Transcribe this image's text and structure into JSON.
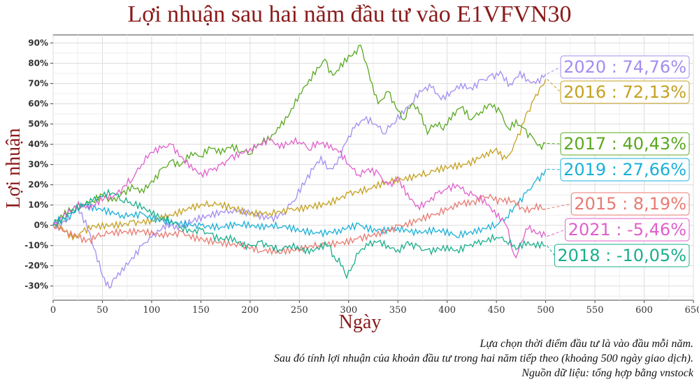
{
  "chart_data": {
    "type": "line",
    "title": "Lợi nhuận sau hai năm đầu tư vào E1VFVN30",
    "xlabel": "Ngày",
    "ylabel": "Lợi nhuận",
    "xlim": [
      0,
      650
    ],
    "ylim": [
      -37,
      94
    ],
    "x_ticks": [
      "0",
      "50",
      "100",
      "150",
      "200",
      "250",
      "300",
      "350",
      "400",
      "450",
      "500",
      "550",
      "600",
      "650"
    ],
    "y_ticks": [
      "90%",
      "80%",
      "70%",
      "60%",
      "50%",
      "40%",
      "30%",
      "20%",
      "10%",
      "0%",
      "-10%",
      "-20%",
      "-30%"
    ],
    "grid": true,
    "series": [
      {
        "name": "2020",
        "label": "2020 : 74,76%",
        "color": "#a48cf0",
        "points": [
          [
            0,
            0
          ],
          [
            15,
            3
          ],
          [
            25,
            8
          ],
          [
            35,
            -2
          ],
          [
            45,
            -18
          ],
          [
            52,
            -26
          ],
          [
            57,
            -31
          ],
          [
            62,
            -26
          ],
          [
            70,
            -21
          ],
          [
            80,
            -16
          ],
          [
            90,
            -10
          ],
          [
            100,
            -6
          ],
          [
            110,
            -2
          ],
          [
            125,
            0
          ],
          [
            140,
            1
          ],
          [
            160,
            4
          ],
          [
            180,
            7
          ],
          [
            200,
            6
          ],
          [
            220,
            4
          ],
          [
            235,
            6
          ],
          [
            245,
            12
          ],
          [
            255,
            20
          ],
          [
            262,
            28
          ],
          [
            272,
            34
          ],
          [
            280,
            28
          ],
          [
            288,
            30
          ],
          [
            296,
            40
          ],
          [
            306,
            48
          ],
          [
            316,
            52
          ],
          [
            326,
            50
          ],
          [
            336,
            45
          ],
          [
            346,
            50
          ],
          [
            356,
            55
          ],
          [
            364,
            60
          ],
          [
            374,
            66
          ],
          [
            384,
            68
          ],
          [
            394,
            62
          ],
          [
            404,
            66
          ],
          [
            414,
            70
          ],
          [
            424,
            68
          ],
          [
            434,
            72
          ],
          [
            444,
            74
          ],
          [
            454,
            76
          ],
          [
            464,
            70
          ],
          [
            474,
            76
          ],
          [
            482,
            72
          ],
          [
            490,
            70
          ],
          [
            500,
            74.76
          ]
        ]
      },
      {
        "name": "2016",
        "label": "2016 : 72,13%",
        "color": "#c4a020",
        "points": [
          [
            0,
            0
          ],
          [
            10,
            -2
          ],
          [
            20,
            -7
          ],
          [
            30,
            -3
          ],
          [
            40,
            0
          ],
          [
            60,
            1
          ],
          [
            80,
            2
          ],
          [
            100,
            3
          ],
          [
            120,
            5
          ],
          [
            140,
            8
          ],
          [
            160,
            10
          ],
          [
            180,
            8
          ],
          [
            200,
            5
          ],
          [
            220,
            6
          ],
          [
            240,
            8
          ],
          [
            260,
            10
          ],
          [
            280,
            12
          ],
          [
            300,
            16
          ],
          [
            320,
            18
          ],
          [
            340,
            21
          ],
          [
            360,
            22
          ],
          [
            380,
            25
          ],
          [
            400,
            28
          ],
          [
            420,
            30
          ],
          [
            440,
            36
          ],
          [
            450,
            38
          ],
          [
            460,
            33
          ],
          [
            470,
            42
          ],
          [
            480,
            55
          ],
          [
            488,
            62
          ],
          [
            494,
            68
          ],
          [
            500,
            72.13
          ]
        ]
      },
      {
        "name": "2017",
        "label": "2017 : 40,43%",
        "color": "#5aa820",
        "points": [
          [
            0,
            0
          ],
          [
            10,
            4
          ],
          [
            20,
            8
          ],
          [
            30,
            10
          ],
          [
            40,
            12
          ],
          [
            50,
            15
          ],
          [
            60,
            12
          ],
          [
            70,
            16
          ],
          [
            80,
            20
          ],
          [
            90,
            18
          ],
          [
            100,
            22
          ],
          [
            110,
            28
          ],
          [
            120,
            32
          ],
          [
            130,
            30
          ],
          [
            140,
            36
          ],
          [
            150,
            34
          ],
          [
            160,
            38
          ],
          [
            170,
            35
          ],
          [
            180,
            38
          ],
          [
            190,
            36
          ],
          [
            200,
            35
          ],
          [
            210,
            40
          ],
          [
            220,
            42
          ],
          [
            230,
            48
          ],
          [
            240,
            55
          ],
          [
            250,
            65
          ],
          [
            260,
            72
          ],
          [
            268,
            78
          ],
          [
            276,
            82
          ],
          [
            284,
            74
          ],
          [
            292,
            80
          ],
          [
            300,
            84
          ],
          [
            306,
            86
          ],
          [
            312,
            89
          ],
          [
            318,
            80
          ],
          [
            324,
            70
          ],
          [
            330,
            60
          ],
          [
            340,
            66
          ],
          [
            348,
            58
          ],
          [
            356,
            52
          ],
          [
            364,
            60
          ],
          [
            372,
            55
          ],
          [
            380,
            45
          ],
          [
            388,
            50
          ],
          [
            396,
            47
          ],
          [
            404,
            52
          ],
          [
            414,
            58
          ],
          [
            424,
            52
          ],
          [
            434,
            56
          ],
          [
            444,
            60
          ],
          [
            454,
            56
          ],
          [
            462,
            48
          ],
          [
            470,
            52
          ],
          [
            478,
            48
          ],
          [
            486,
            44
          ],
          [
            494,
            40
          ],
          [
            500,
            40.43
          ]
        ]
      },
      {
        "name": "2019",
        "label": "2019 : 27,66%",
        "color": "#1ab0d8",
        "points": [
          [
            0,
            0
          ],
          [
            15,
            5
          ],
          [
            30,
            9
          ],
          [
            50,
            7
          ],
          [
            70,
            5
          ],
          [
            90,
            6
          ],
          [
            110,
            3
          ],
          [
            130,
            2
          ],
          [
            150,
            0
          ],
          [
            170,
            -1
          ],
          [
            190,
            0
          ],
          [
            210,
            -2
          ],
          [
            230,
            -1
          ],
          [
            250,
            -3
          ],
          [
            270,
            -4
          ],
          [
            290,
            -2
          ],
          [
            300,
            0
          ],
          [
            310,
            1
          ],
          [
            330,
            -2
          ],
          [
            350,
            -1
          ],
          [
            370,
            -4
          ],
          [
            390,
            -3
          ],
          [
            410,
            -6
          ],
          [
            430,
            -4
          ],
          [
            450,
            0
          ],
          [
            460,
            4
          ],
          [
            470,
            10
          ],
          [
            480,
            16
          ],
          [
            490,
            22
          ],
          [
            500,
            27.66
          ]
        ]
      },
      {
        "name": "2015",
        "label": "2015 : 8,19%",
        "color": "#e87a70",
        "points": [
          [
            0,
            0
          ],
          [
            10,
            -3
          ],
          [
            20,
            -6
          ],
          [
            35,
            -7
          ],
          [
            50,
            -5
          ],
          [
            70,
            -4
          ],
          [
            90,
            -3
          ],
          [
            110,
            -4
          ],
          [
            130,
            -3
          ],
          [
            150,
            -6
          ],
          [
            170,
            -8
          ],
          [
            190,
            -10
          ],
          [
            210,
            -13
          ],
          [
            230,
            -14
          ],
          [
            250,
            -13
          ],
          [
            270,
            -10
          ],
          [
            290,
            -9
          ],
          [
            310,
            -6
          ],
          [
            330,
            -3
          ],
          [
            350,
            0
          ],
          [
            370,
            3
          ],
          [
            390,
            6
          ],
          [
            410,
            9
          ],
          [
            425,
            12
          ],
          [
            440,
            14
          ],
          [
            455,
            13
          ],
          [
            470,
            10
          ],
          [
            485,
            8
          ],
          [
            500,
            8.19
          ]
        ]
      },
      {
        "name": "2021",
        "label": "2021 : -5,46%",
        "color": "#e060cc",
        "points": [
          [
            0,
            0
          ],
          [
            10,
            4
          ],
          [
            20,
            8
          ],
          [
            35,
            10
          ],
          [
            50,
            12
          ],
          [
            65,
            16
          ],
          [
            80,
            22
          ],
          [
            90,
            30
          ],
          [
            100,
            36
          ],
          [
            110,
            38
          ],
          [
            120,
            40
          ],
          [
            130,
            34
          ],
          [
            140,
            30
          ],
          [
            150,
            26
          ],
          [
            160,
            28
          ],
          [
            170,
            30
          ],
          [
            180,
            34
          ],
          [
            190,
            36
          ],
          [
            200,
            38
          ],
          [
            210,
            40
          ],
          [
            220,
            42
          ],
          [
            230,
            38
          ],
          [
            240,
            40
          ],
          [
            250,
            41
          ],
          [
            260,
            37
          ],
          [
            270,
            40
          ],
          [
            280,
            38
          ],
          [
            290,
            36
          ],
          [
            300,
            30
          ],
          [
            310,
            25
          ],
          [
            320,
            28
          ],
          [
            330,
            26
          ],
          [
            340,
            20
          ],
          [
            350,
            24
          ],
          [
            360,
            16
          ],
          [
            370,
            10
          ],
          [
            380,
            12
          ],
          [
            390,
            16
          ],
          [
            400,
            18
          ],
          [
            410,
            20
          ],
          [
            420,
            16
          ],
          [
            430,
            14
          ],
          [
            440,
            10
          ],
          [
            450,
            4
          ],
          [
            460,
            0
          ],
          [
            466,
            -12
          ],
          [
            470,
            -16
          ],
          [
            476,
            -8
          ],
          [
            482,
            -2
          ],
          [
            490,
            -4
          ],
          [
            500,
            -5.46
          ]
        ]
      },
      {
        "name": "2018",
        "label": "2018 : -10,05%",
        "color": "#1aae8c",
        "points": [
          [
            0,
            0
          ],
          [
            10,
            4
          ],
          [
            20,
            8
          ],
          [
            30,
            10
          ],
          [
            40,
            12
          ],
          [
            50,
            14
          ],
          [
            60,
            16
          ],
          [
            70,
            12
          ],
          [
            80,
            10
          ],
          [
            90,
            8
          ],
          [
            100,
            5
          ],
          [
            110,
            3
          ],
          [
            120,
            2
          ],
          [
            130,
            -1
          ],
          [
            140,
            -3
          ],
          [
            150,
            -2
          ],
          [
            160,
            -4
          ],
          [
            170,
            -6
          ],
          [
            180,
            -5
          ],
          [
            190,
            -8
          ],
          [
            200,
            -10
          ],
          [
            210,
            -8
          ],
          [
            220,
            -10
          ],
          [
            230,
            -12
          ],
          [
            240,
            -10
          ],
          [
            250,
            -12
          ],
          [
            260,
            -14
          ],
          [
            270,
            -12
          ],
          [
            280,
            -10
          ],
          [
            285,
            -15
          ],
          [
            292,
            -20
          ],
          [
            298,
            -26
          ],
          [
            304,
            -20
          ],
          [
            310,
            -14
          ],
          [
            320,
            -10
          ],
          [
            330,
            -8
          ],
          [
            340,
            -10
          ],
          [
            350,
            -12
          ],
          [
            360,
            -8
          ],
          [
            370,
            -10
          ],
          [
            380,
            -12
          ],
          [
            390,
            -11
          ],
          [
            400,
            -10
          ],
          [
            410,
            -12
          ],
          [
            420,
            -10
          ],
          [
            430,
            -9
          ],
          [
            440,
            -8
          ],
          [
            450,
            -6
          ],
          [
            460,
            -8
          ],
          [
            470,
            -12
          ],
          [
            480,
            -10
          ],
          [
            490,
            -11
          ],
          [
            500,
            -10.05
          ]
        ]
      }
    ]
  },
  "notes": [
    "Lựa chọn thời điểm đầu tư là vào đầu mỗi năm.",
    "Sau đó tính lợi nhuận của khoản đầu tư trong hai năm tiếp theo (khoảng 500 ngày giao dịch).",
    "Nguồn dữ liệu: tổng hợp bằng vnstock"
  ]
}
